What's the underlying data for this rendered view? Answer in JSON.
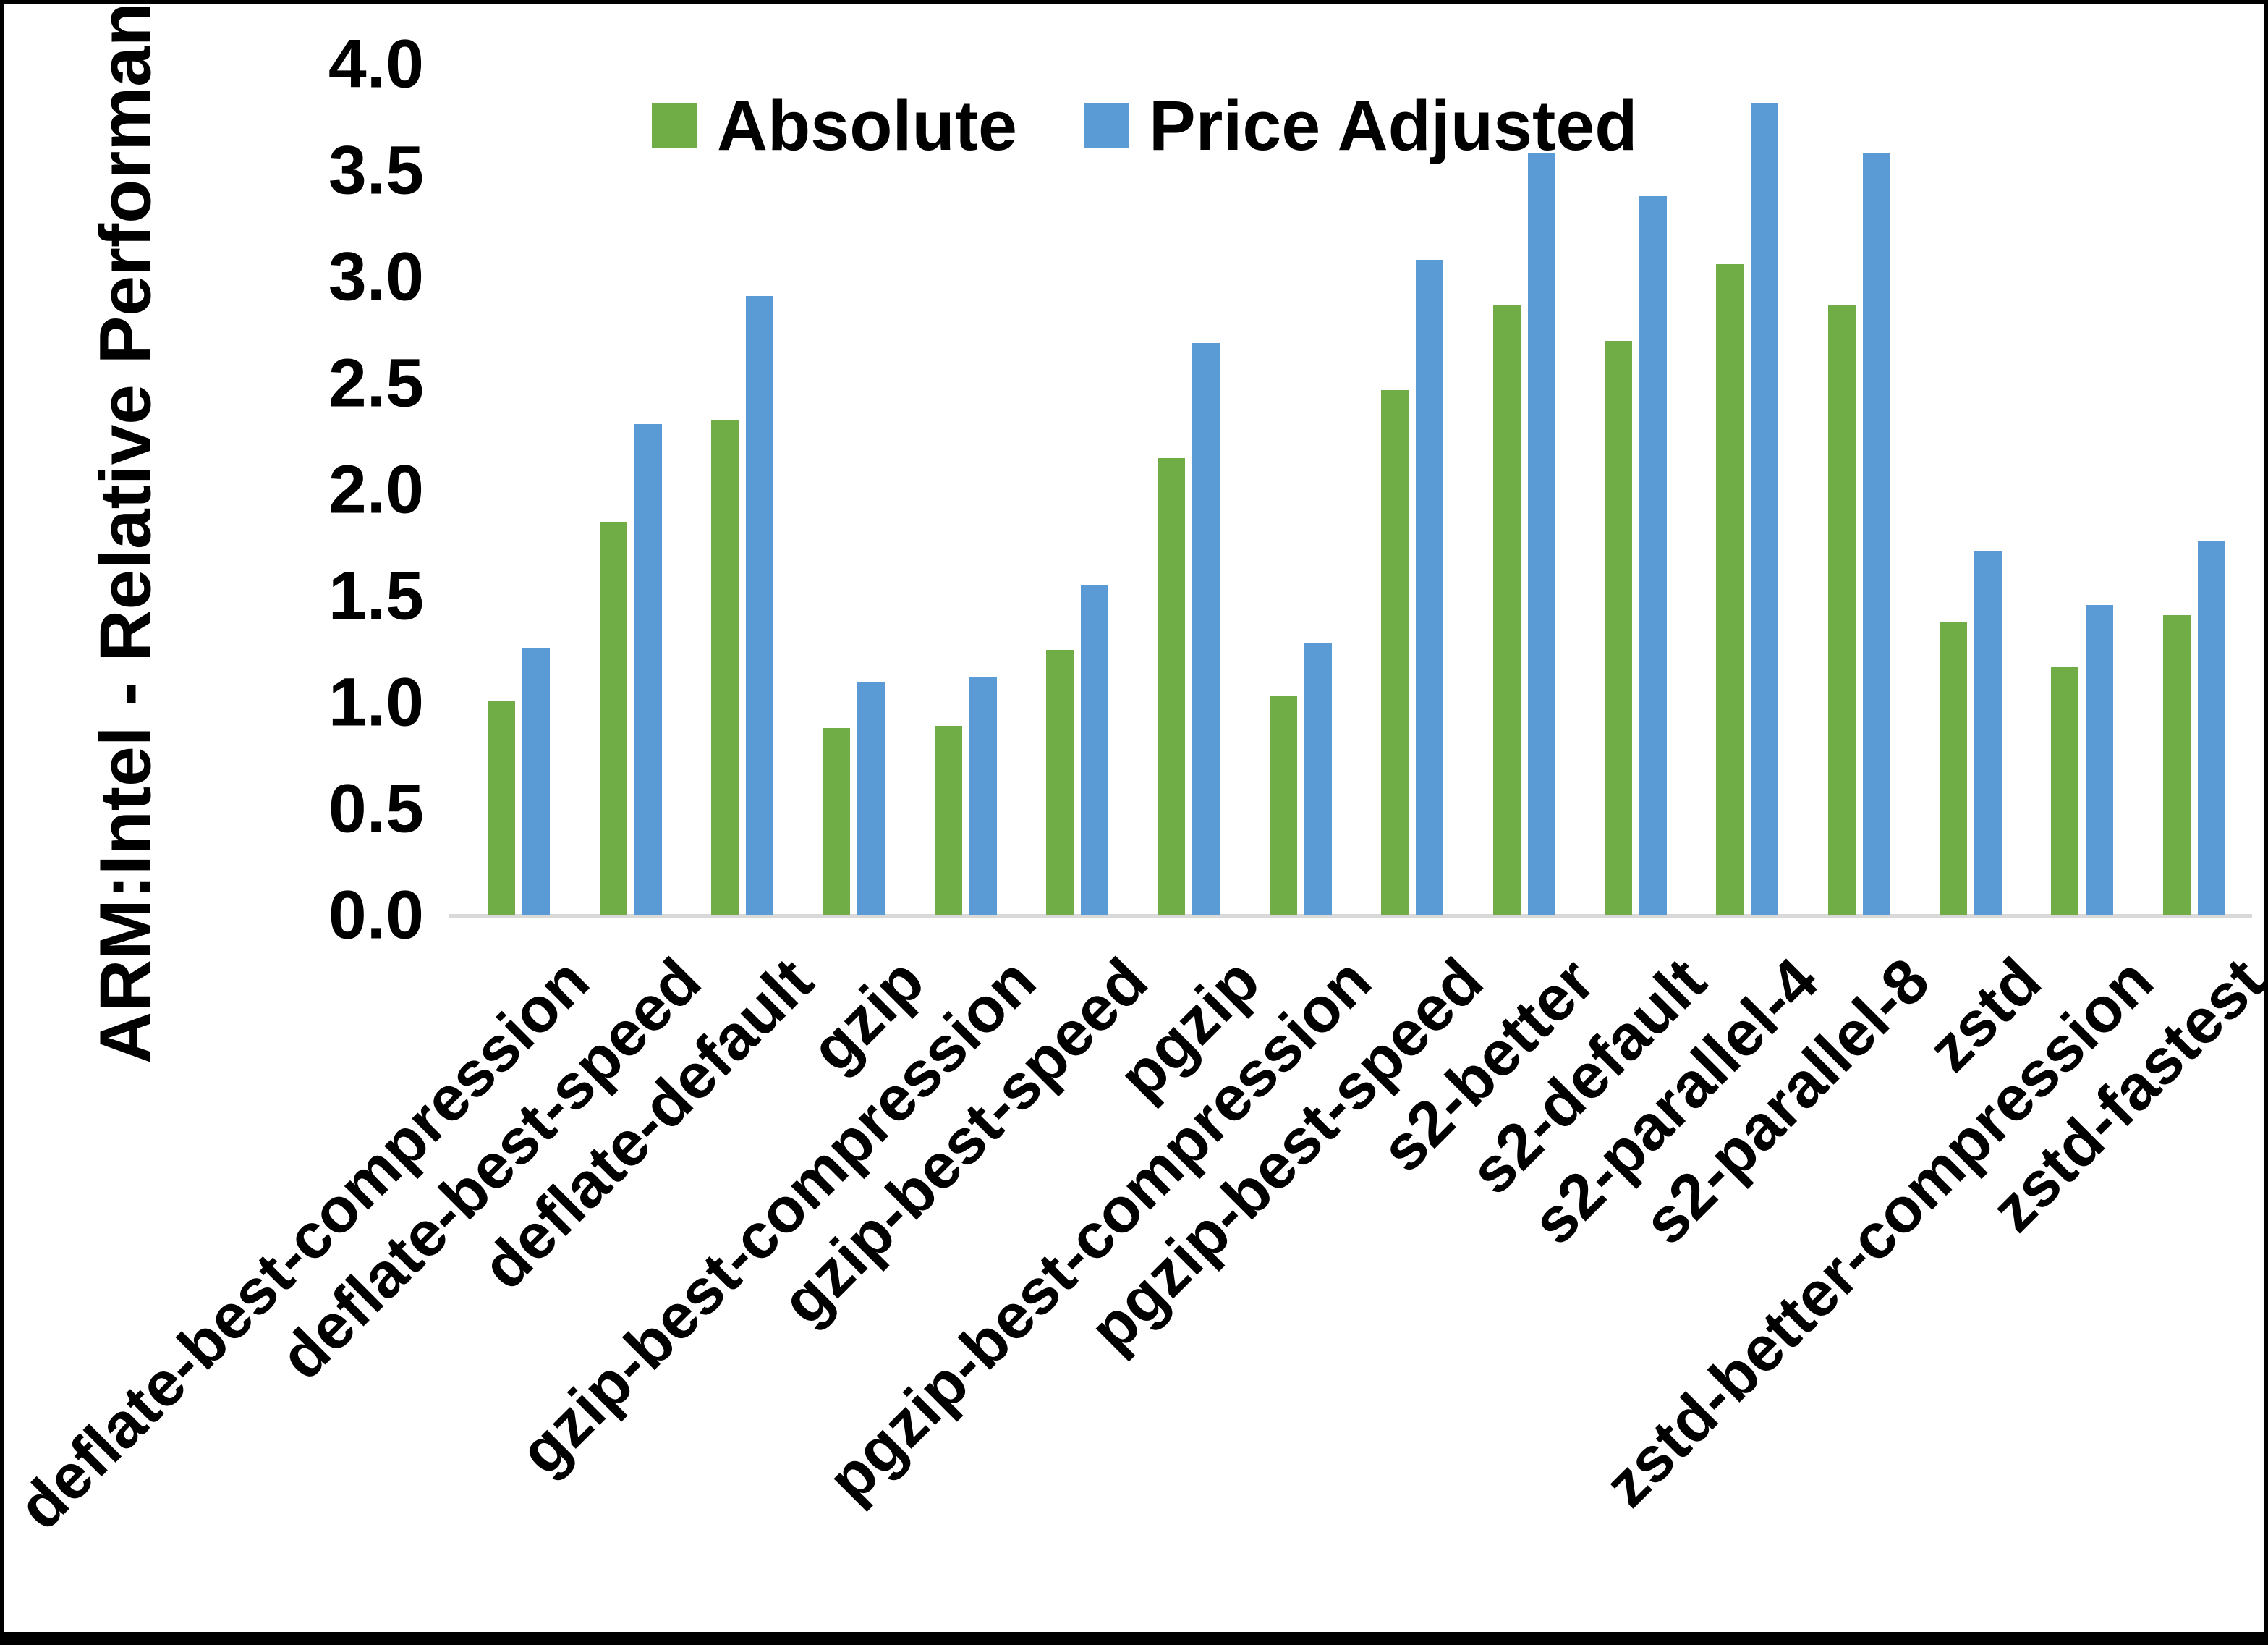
{
  "colors": {
    "absolute_green": "#70AD47",
    "price_adjusted_blue": "#5B9BD5",
    "axis_line": "#D9D9D9",
    "text": "#000000",
    "background": "#FFFFFF",
    "frame_border": "#000000"
  },
  "legend": {
    "items": [
      {
        "label": "Absolute",
        "color": "#70AD47"
      },
      {
        "label": "Price Adjusted",
        "color": "#5B9BD5"
      }
    ]
  },
  "chart_data": {
    "type": "bar",
    "title": "",
    "xlabel": "",
    "ylabel": "ARM:Intel - Relative Performance",
    "ylim": [
      0.0,
      4.0
    ],
    "y_tick_labels": [
      "0.0",
      "0.5",
      "1.0",
      "1.5",
      "2.0",
      "2.5",
      "3.0",
      "3.5",
      "4.0"
    ],
    "grid": false,
    "legend_position": "top",
    "categories": [
      "deflate-best-compression",
      "deflate-best-speed",
      "deflate-default",
      "gzip",
      "gzip-best-compression",
      "gzip-best-speed",
      "pgzip",
      "pgzip-best-compression",
      "pgzip-best-speed",
      "s2-better",
      "s2-default",
      "s2-parallel-4",
      "s2-parallel-8",
      "zstd",
      "zstd-better-compression",
      "zstd-fastest"
    ],
    "series": [
      {
        "name": "Absolute",
        "color": "#70AD47",
        "values": [
          1.01,
          1.85,
          2.33,
          0.88,
          0.89,
          1.25,
          2.15,
          1.03,
          2.47,
          2.87,
          2.7,
          3.06,
          2.87,
          1.38,
          1.17,
          1.41
        ]
      },
      {
        "name": "Price Adjusted",
        "color": "#5B9BD5",
        "values": [
          1.26,
          2.31,
          2.91,
          1.1,
          1.12,
          1.55,
          2.69,
          1.28,
          3.08,
          3.58,
          3.38,
          3.82,
          3.58,
          1.71,
          1.46,
          1.76
        ]
      }
    ]
  }
}
